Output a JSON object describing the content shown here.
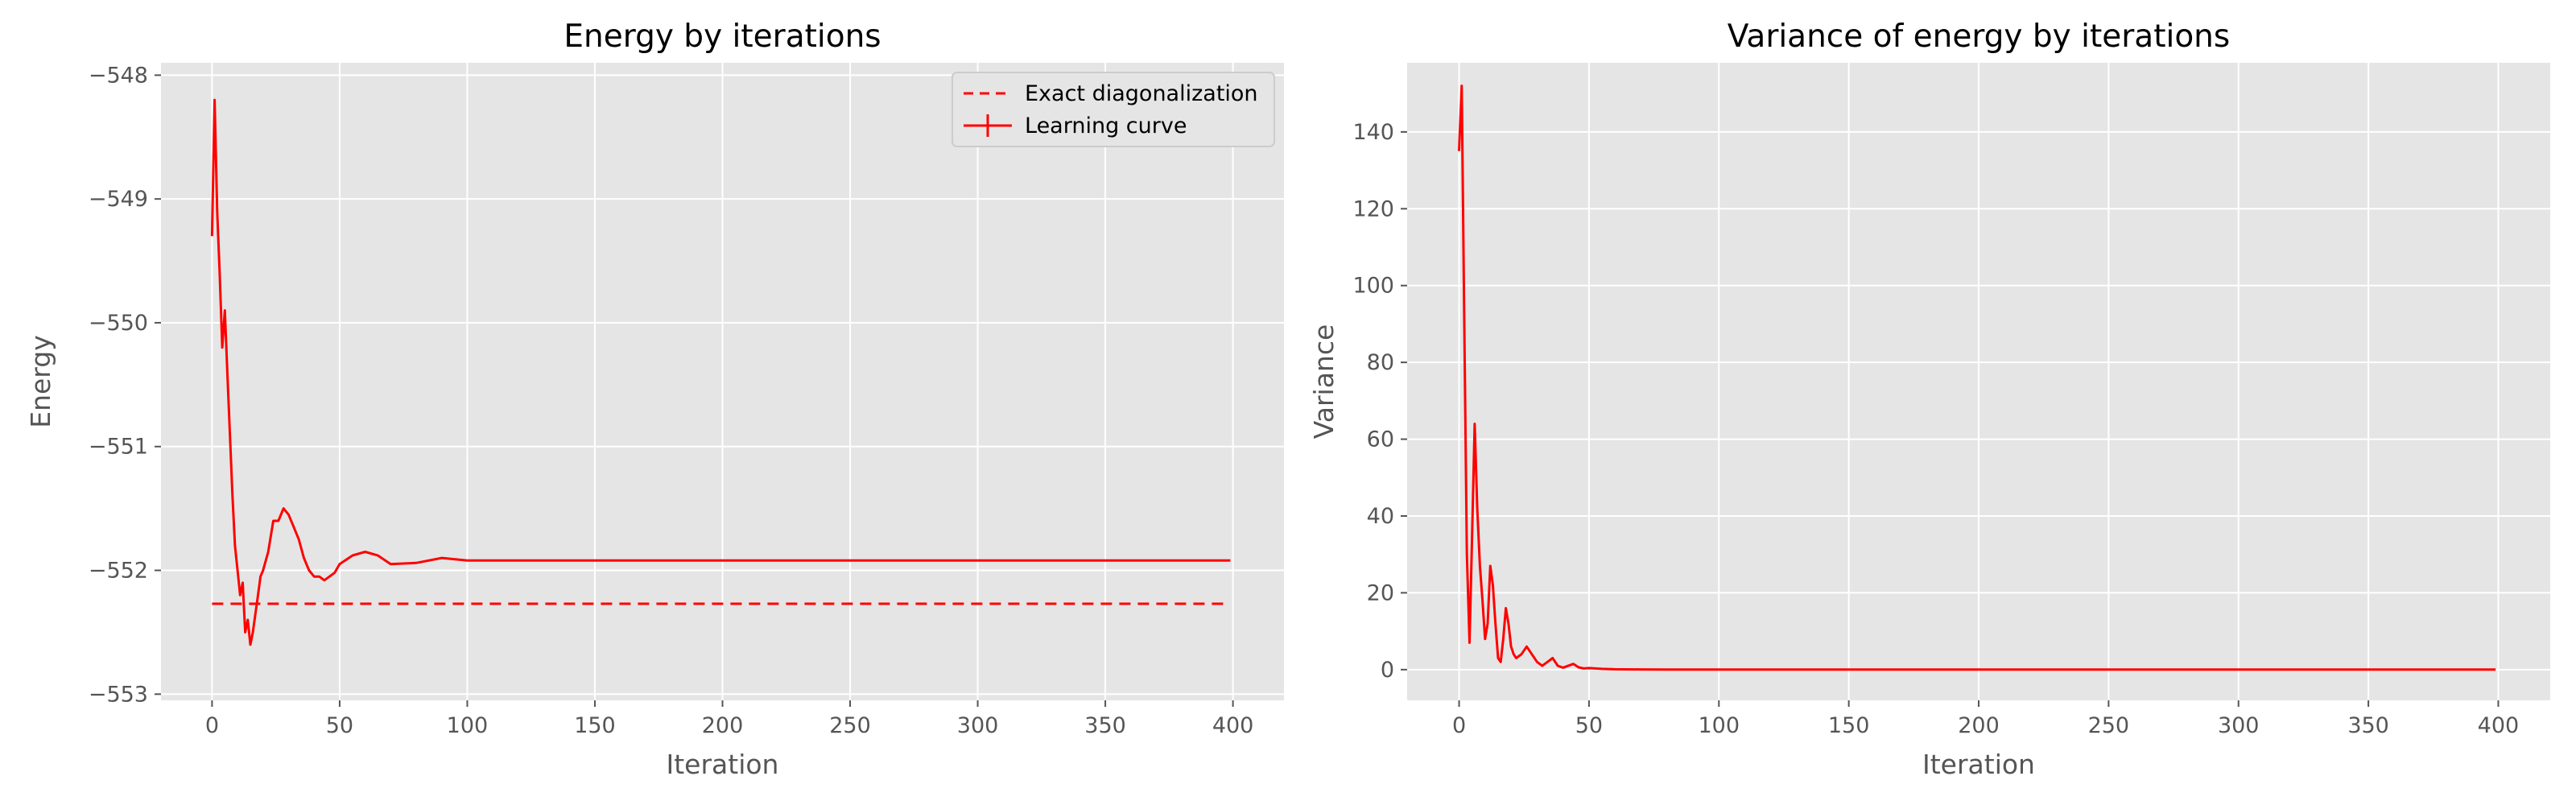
{
  "chart_data": [
    {
      "type": "line",
      "title": "Energy by iterations",
      "xlabel": "Iteration",
      "ylabel": "Energy",
      "xlim": [
        -20,
        420
      ],
      "ylim": [
        -553.05,
        -547.9
      ],
      "xticks": [
        0,
        50,
        100,
        150,
        200,
        250,
        300,
        350,
        400
      ],
      "yticks": [
        -553,
        -552,
        -551,
        -550,
        -549,
        -548
      ],
      "grid": true,
      "legend": "top-right",
      "series": [
        {
          "name": "Exact diagonalization",
          "style": "dashed",
          "color": "#ff0000",
          "x": [
            0,
            399
          ],
          "y": [
            -552.27,
            -552.27
          ]
        },
        {
          "name": "Learning curve",
          "style": "solid",
          "color": "#ff0000",
          "x": [
            0,
            1,
            2,
            3,
            4,
            5,
            6,
            7,
            8,
            9,
            10,
            11,
            12,
            13,
            14,
            15,
            16,
            17,
            18,
            19,
            20,
            22,
            24,
            26,
            28,
            30,
            32,
            34,
            36,
            38,
            40,
            42,
            44,
            46,
            48,
            50,
            55,
            60,
            65,
            70,
            80,
            90,
            100,
            120,
            150,
            200,
            250,
            300,
            350,
            399
          ],
          "y": [
            -549.3,
            -548.2,
            -549.1,
            -549.6,
            -550.2,
            -549.9,
            -550.4,
            -550.9,
            -551.4,
            -551.8,
            -552.0,
            -552.2,
            -552.1,
            -552.5,
            -552.4,
            -552.6,
            -552.5,
            -552.35,
            -552.2,
            -552.05,
            -552.0,
            -551.85,
            -551.6,
            -551.6,
            -551.5,
            -551.55,
            -551.65,
            -551.75,
            -551.9,
            -552.0,
            -552.05,
            -552.05,
            -552.08,
            -552.05,
            -552.02,
            -551.95,
            -551.88,
            -551.85,
            -551.88,
            -551.95,
            -551.94,
            -551.9,
            -551.92,
            -551.92,
            -551.92,
            -551.92,
            -551.92,
            -551.92,
            -551.92,
            -551.92
          ]
        }
      ]
    },
    {
      "type": "line",
      "title": "Variance of energy by iterations",
      "xlabel": "Iteration",
      "ylabel": "Variance",
      "xlim": [
        -20,
        420
      ],
      "ylim": [
        -8,
        158
      ],
      "xticks": [
        0,
        50,
        100,
        150,
        200,
        250,
        300,
        350,
        400
      ],
      "yticks": [
        0,
        20,
        40,
        60,
        80,
        100,
        120,
        140
      ],
      "grid": true,
      "series": [
        {
          "style": "solid",
          "color": "#ff0000",
          "x": [
            0,
            1,
            2,
            3,
            4,
            5,
            6,
            7,
            8,
            9,
            10,
            11,
            12,
            13,
            14,
            15,
            16,
            17,
            18,
            19,
            20,
            21,
            22,
            24,
            26,
            28,
            30,
            32,
            34,
            36,
            38,
            40,
            42,
            44,
            46,
            48,
            50,
            55,
            60,
            70,
            80,
            100,
            150,
            200,
            300,
            399
          ],
          "y": [
            135,
            152,
            90,
            30,
            7,
            35,
            64,
            42,
            27,
            18,
            8,
            12,
            27,
            22,
            12,
            3,
            2,
            8,
            16,
            12,
            6,
            4,
            3,
            4,
            6,
            4,
            2,
            1,
            2,
            3,
            1,
            0.5,
            1,
            1.5,
            0.6,
            0.3,
            0.4,
            0.2,
            0.1,
            0.05,
            0,
            0,
            0,
            0,
            0,
            0
          ]
        }
      ]
    }
  ],
  "colors": {
    "plot_background": "#e5e5e5",
    "grid": "#ffffff",
    "line": "#ff0000"
  }
}
